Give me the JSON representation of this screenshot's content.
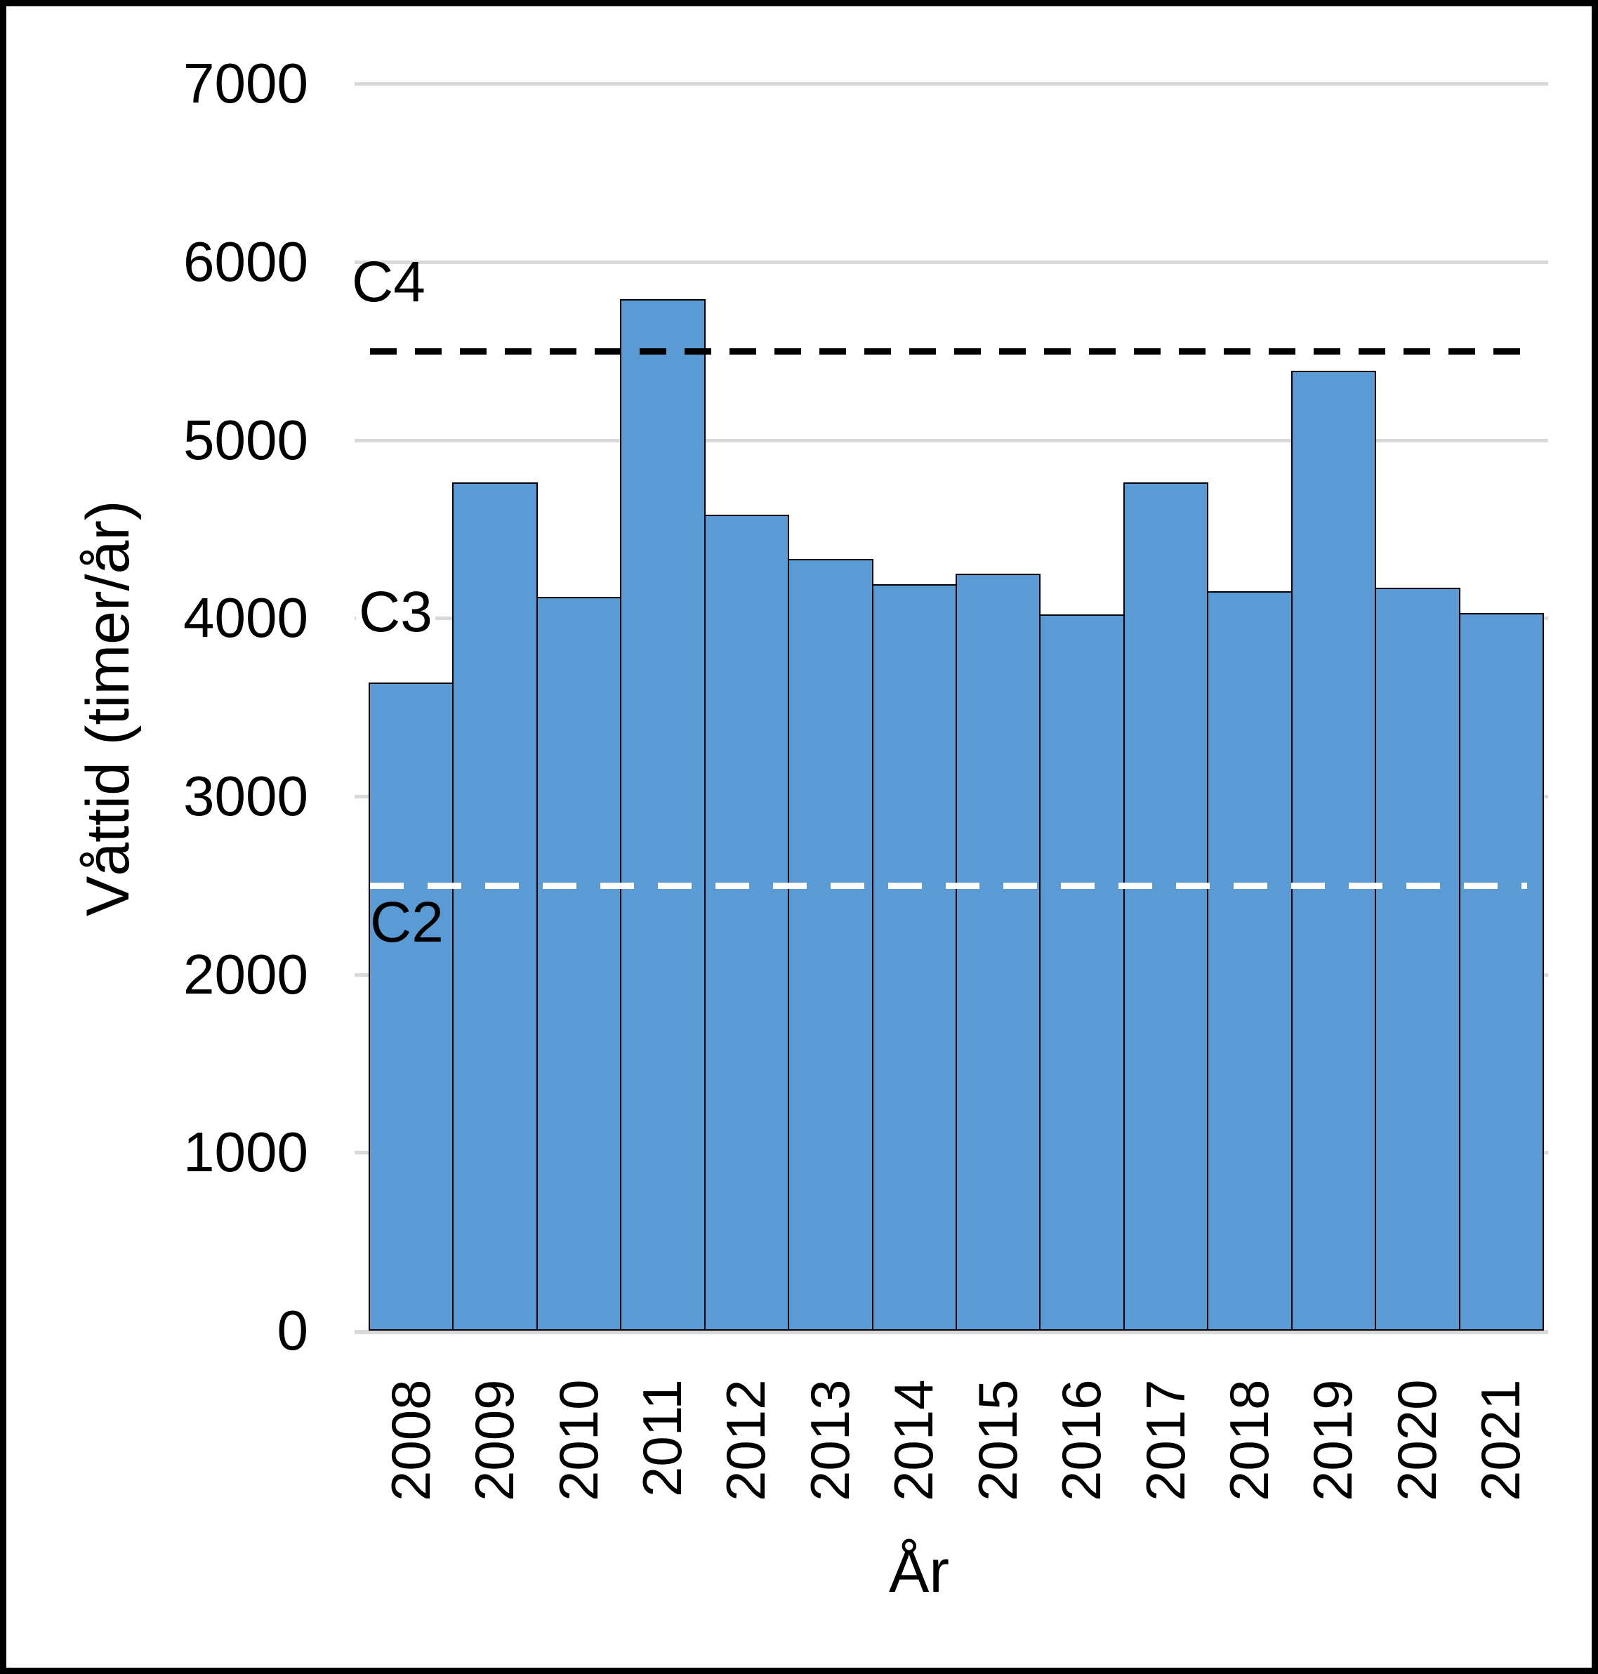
{
  "chart_data": {
    "type": "bar",
    "title": "",
    "categories": [
      "2008",
      "2009",
      "2010",
      "2011",
      "2012",
      "2013",
      "2014",
      "2015",
      "2016",
      "2017",
      "2018",
      "2019",
      "2020",
      "2021"
    ],
    "values": [
      3640,
      4760,
      4120,
      5790,
      4580,
      4330,
      4190,
      4250,
      4020,
      4760,
      4150,
      5390,
      4170,
      4030
    ],
    "xlabel": "År",
    "ylabel": "Våttid (timer/år)",
    "ylim": [
      0,
      7000
    ],
    "ytick_step": 1000,
    "yticks": [
      "7000",
      "6000",
      "5000",
      "4000",
      "3000",
      "2000",
      "1000",
      "0"
    ],
    "ytick_values": [
      7000,
      6000,
      5000,
      4000,
      3000,
      2000,
      1000,
      0
    ],
    "grid": "horizontal gridlines on",
    "legend": "none",
    "bar_color": "#5B9BD5",
    "bar_border_color": "#000000",
    "gridline_color": "#D9D9D9",
    "background_color": "#FFFFFF",
    "frame_color": "#000000",
    "thresholds": [
      {
        "label": "C2",
        "value": 2500,
        "line": "dashed",
        "color": "#FFFFFF"
      },
      {
        "label": "C3",
        "value": 4000,
        "line": "none",
        "color": "#000000"
      },
      {
        "label": "C4",
        "value": 5500,
        "line": "dashed",
        "color": "#000000"
      }
    ]
  }
}
